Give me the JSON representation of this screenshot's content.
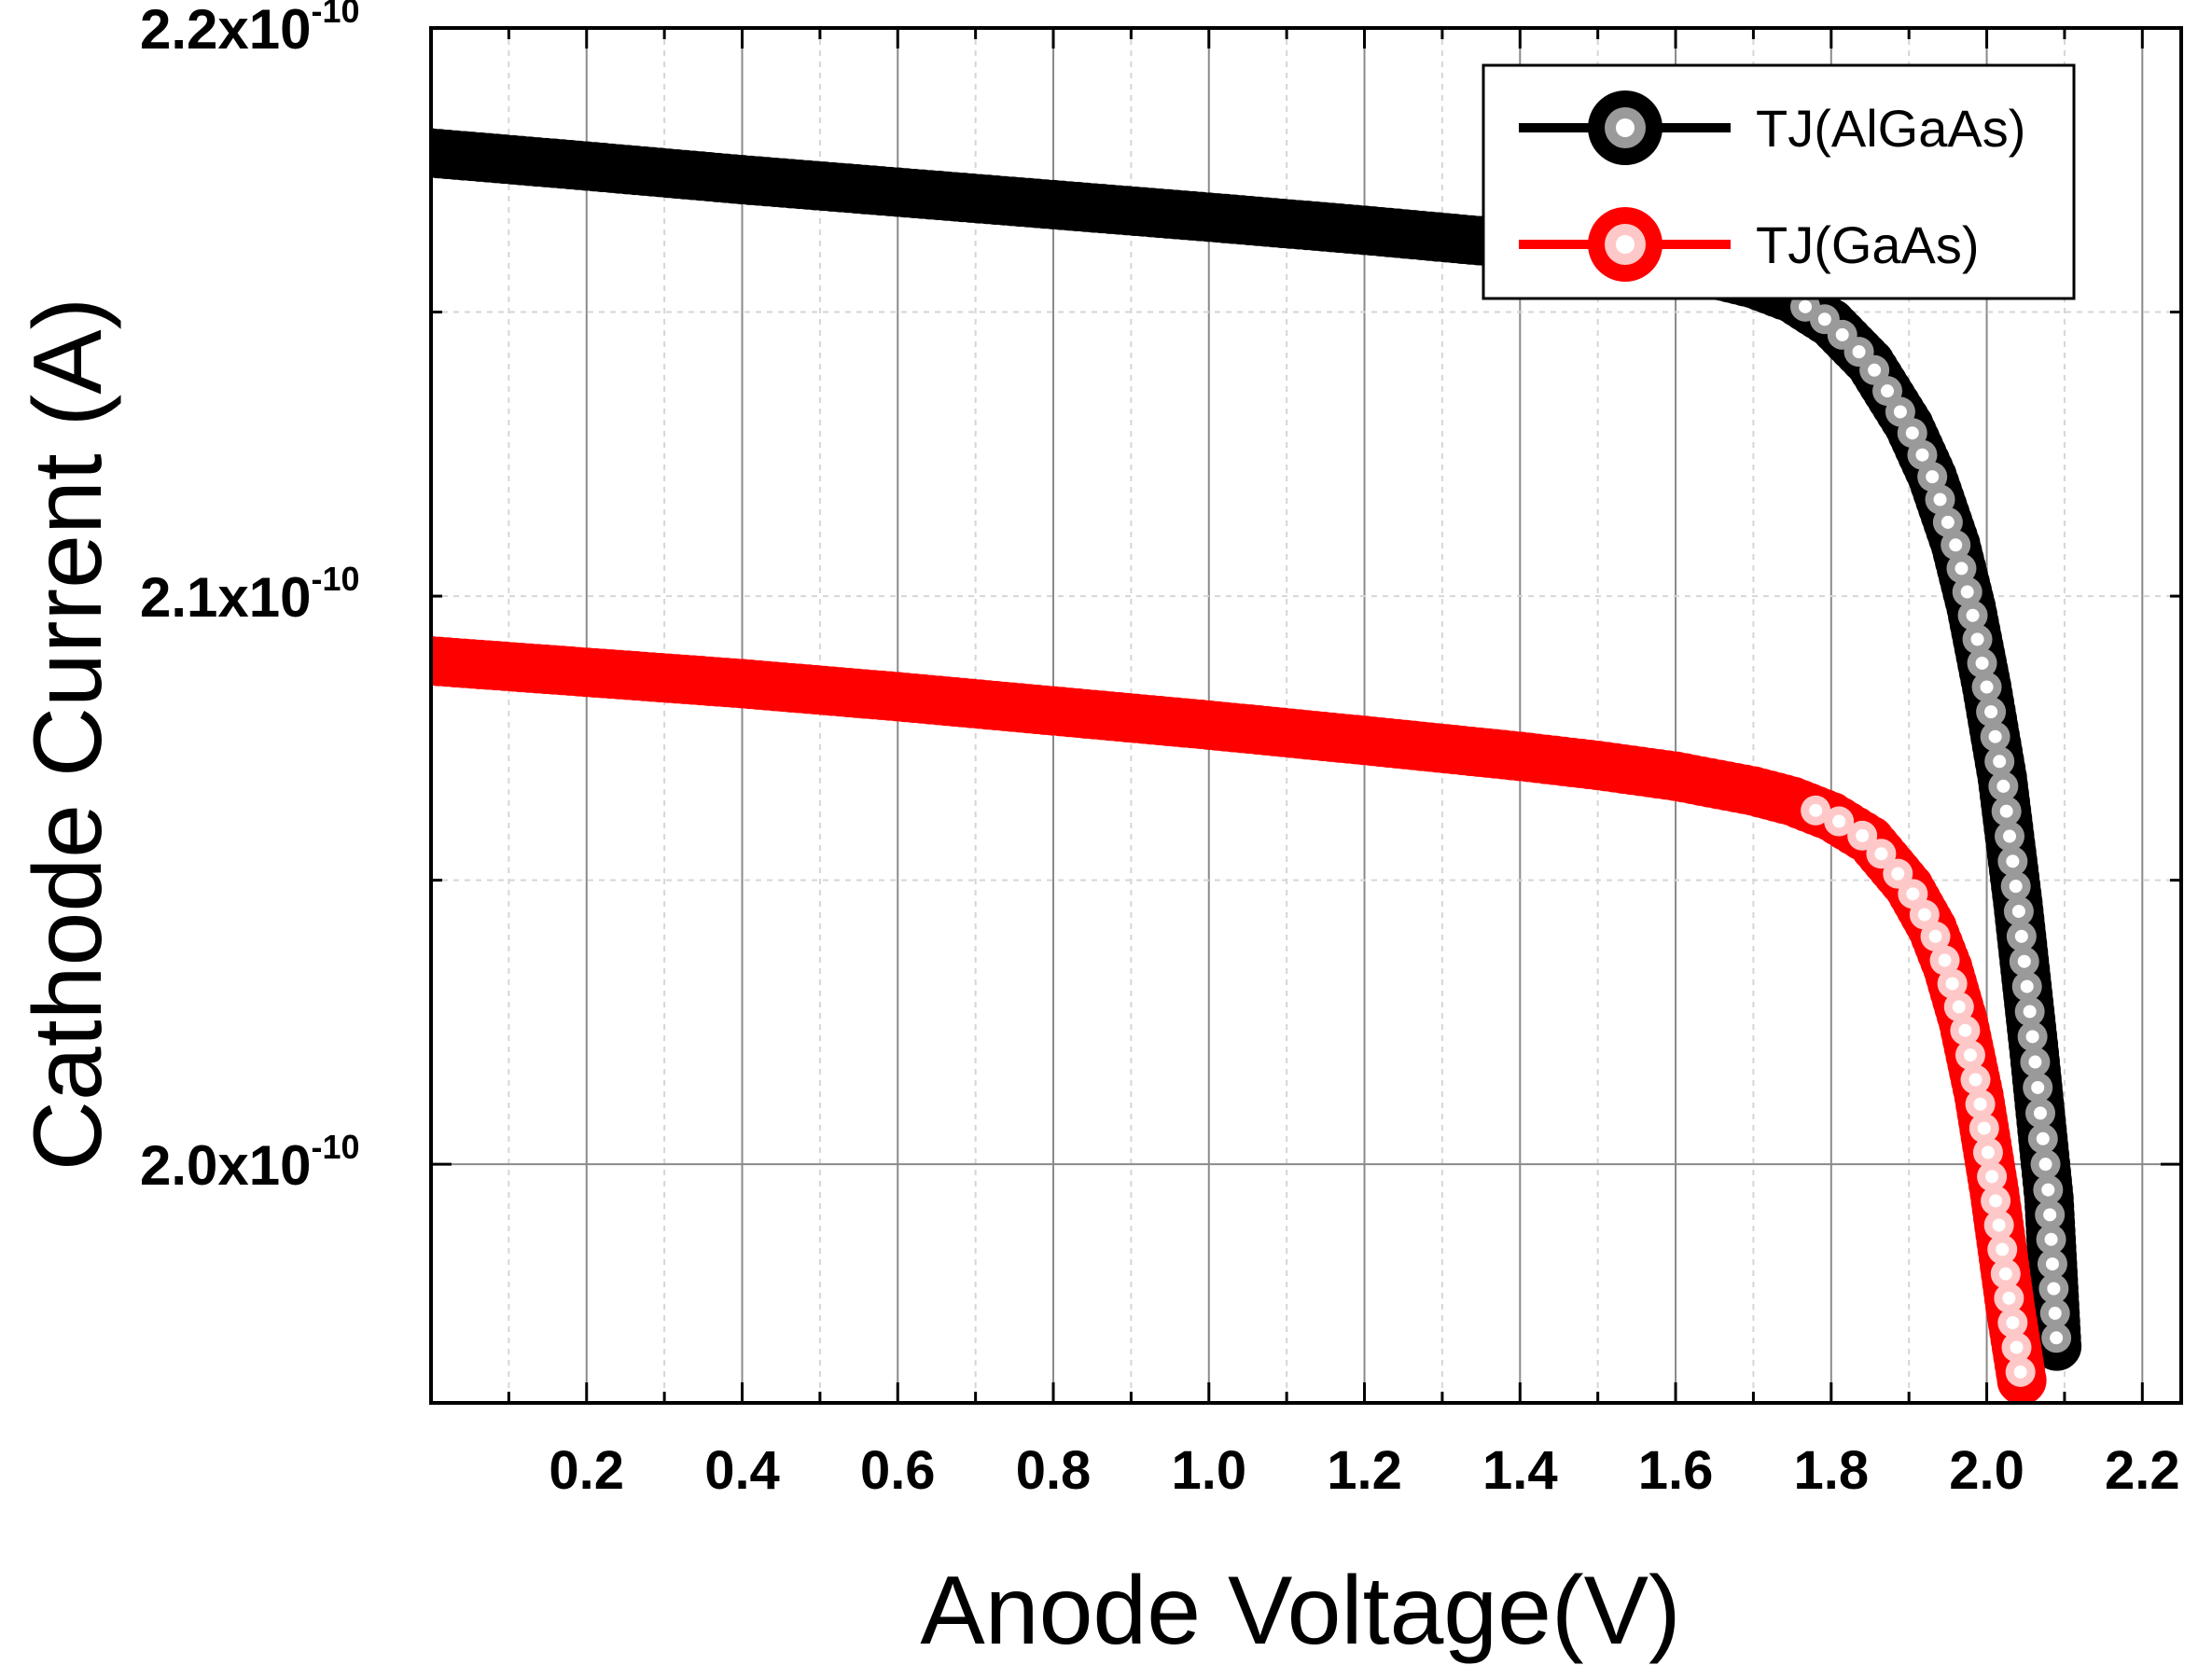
{
  "chart_data": {
    "type": "scatter",
    "title": "",
    "xlabel": "Anode Voltage(V)",
    "ylabel": "Cathode Current (A)",
    "xlim": [
      0.0,
      2.25
    ],
    "ylim": [
      1.958e-10,
      2.2e-10
    ],
    "x_ticks": [
      {
        "value": 0.2,
        "label": "0.2"
      },
      {
        "value": 0.4,
        "label": "0.4"
      },
      {
        "value": 0.6,
        "label": "0.6"
      },
      {
        "value": 0.8,
        "label": "0.8"
      },
      {
        "value": 1.0,
        "label": "1.0"
      },
      {
        "value": 1.2,
        "label": "1.2"
      },
      {
        "value": 1.4,
        "label": "1.4"
      },
      {
        "value": 1.6,
        "label": "1.6"
      },
      {
        "value": 1.8,
        "label": "1.8"
      },
      {
        "value": 2.0,
        "label": "2.0"
      },
      {
        "value": 2.2,
        "label": "2.2"
      }
    ],
    "y_ticks": [
      {
        "value": 2e-10,
        "mantissa": "2.0x10",
        "exponent": "-10"
      },
      {
        "value": 2.1e-10,
        "mantissa": "2.1x10",
        "exponent": "-10"
      },
      {
        "value": 2.2e-10,
        "mantissa": "2.2x10",
        "exponent": "-10"
      }
    ],
    "grid": true,
    "legend": "top-right",
    "series": [
      {
        "name": "TJ(AlGaAs)",
        "color": "#000000",
        "highlight": "#9a9a9a",
        "x": [
          0.0,
          0.2,
          0.4,
          0.6,
          0.8,
          1.0,
          1.2,
          1.4,
          1.5,
          1.6,
          1.7,
          1.75,
          1.8,
          1.85,
          1.9,
          1.93,
          1.96,
          1.98,
          2.0,
          2.02,
          2.04,
          2.06,
          2.08,
          2.09
        ],
        "y": [
          2.178e-10,
          2.1757e-10,
          2.1733e-10,
          2.1711e-10,
          2.1689e-10,
          2.1667e-10,
          2.1644e-10,
          2.1619e-10,
          2.1604e-10,
          2.1583e-10,
          2.155e-10,
          2.1524e-10,
          2.148e-10,
          2.141e-10,
          2.13e-10,
          2.121e-10,
          2.109e-10,
          2.098e-10,
          2.084e-10,
          2.068e-10,
          2.046e-10,
          2.021e-10,
          1.994e-10,
          1.968e-10
        ]
      },
      {
        "name": "TJ(GaAs)",
        "color": "#ff0000",
        "highlight": "#ffc8c8",
        "x": [
          0.0,
          0.2,
          0.4,
          0.6,
          0.8,
          1.0,
          1.2,
          1.4,
          1.5,
          1.6,
          1.7,
          1.75,
          1.8,
          1.85,
          1.9,
          1.93,
          1.95,
          1.97,
          1.99,
          2.01,
          2.03,
          2.045
        ],
        "y": [
          2.0886e-10,
          2.0866e-10,
          2.0846e-10,
          2.0823e-10,
          2.0798e-10,
          2.0773e-10,
          2.0746e-10,
          2.0718e-10,
          2.0702e-10,
          2.0683e-10,
          2.0657e-10,
          2.0639e-10,
          2.0612e-10,
          2.057e-10,
          2.0488e-10,
          2.0415e-10,
          2.0345e-10,
          2.025e-10,
          2.012e-10,
          1.995e-10,
          1.975e-10,
          1.962e-10
        ]
      }
    ]
  }
}
